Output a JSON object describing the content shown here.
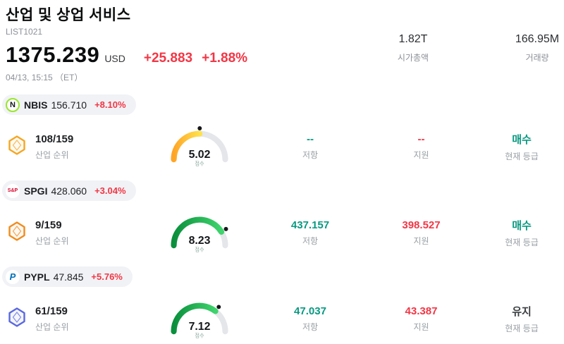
{
  "header": {
    "title": "산업 및 상업 서비스",
    "list_id": "LIST1021",
    "price": "1375.239",
    "currency": "USD",
    "change_abs": "+25.883",
    "change_pct": "+1.88%",
    "datetime": "04/13, 15:15 （ET）",
    "market_cap": {
      "value": "1.82T",
      "label": "시가총액"
    },
    "volume": {
      "value": "166.95M",
      "label": "거래량"
    }
  },
  "labels": {
    "industry_rank": "산업 순위",
    "score": "점수",
    "resistance": "저항",
    "support": "지원",
    "rating": "현재 등급"
  },
  "colors": {
    "up_red": "#f23645",
    "teal": "#089981",
    "hold_dark": "#3c4043",
    "gauge_track": "#e4e6ea"
  },
  "stocks": [
    {
      "ticker": "NBIS",
      "price": "156.710",
      "change": "+8.10%",
      "rank": "108/159",
      "score": 5.02,
      "score_display": "5.02",
      "resistance": "--",
      "support": "--",
      "rating": "매수",
      "rating_type": "buy",
      "gauge_colors": [
        "#ffa526",
        "#ffe14d"
      ],
      "badge_color": "#f5a623",
      "logo": {
        "text": "N",
        "color": "#15171a",
        "ring": "#9ae62e",
        "size": "11px",
        "italic": false
      }
    },
    {
      "ticker": "SPGI",
      "price": "428.060",
      "change": "+3.04%",
      "rank": "9/159",
      "score": 8.23,
      "score_display": "8.23",
      "resistance": "437.157",
      "support": "398.527",
      "rating": "매수",
      "rating_type": "buy",
      "gauge_colors": [
        "#0a8f3c",
        "#3fd46d"
      ],
      "badge_color": "#f08c1e",
      "logo": {
        "text": "S&P",
        "color": "#d6002a",
        "ring": "#ffffff",
        "size": "7px",
        "italic": false
      }
    },
    {
      "ticker": "PYPL",
      "price": "47.845",
      "change": "+5.76%",
      "rank": "61/159",
      "score": 7.12,
      "score_display": "7.12",
      "resistance": "47.037",
      "support": "43.387",
      "rating": "유지",
      "rating_type": "hold",
      "gauge_colors": [
        "#0a8f3c",
        "#3fd46d"
      ],
      "badge_color": "#5a68e0",
      "logo": {
        "text": "P",
        "color": "#0070ba",
        "ring": "#ffffff",
        "size": "13px",
        "italic": true
      }
    }
  ]
}
